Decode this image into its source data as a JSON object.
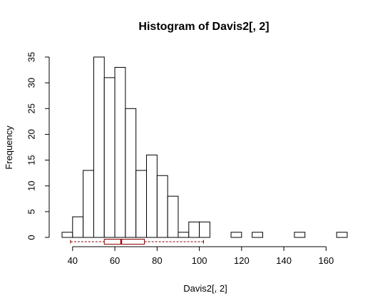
{
  "chart_data": {
    "type": "bar",
    "title": "Histogram of Davis2[, 2]",
    "xlabel": "Davis2[, 2]",
    "ylabel": "Frequency",
    "bin_width": 5,
    "bins": [
      {
        "from": 35,
        "to": 40,
        "count": 1
      },
      {
        "from": 40,
        "to": 45,
        "count": 4
      },
      {
        "from": 45,
        "to": 50,
        "count": 13
      },
      {
        "from": 50,
        "to": 55,
        "count": 35
      },
      {
        "from": 55,
        "to": 60,
        "count": 31
      },
      {
        "from": 60,
        "to": 65,
        "count": 33
      },
      {
        "from": 65,
        "to": 70,
        "count": 25
      },
      {
        "from": 70,
        "to": 75,
        "count": 13
      },
      {
        "from": 75,
        "to": 80,
        "count": 16
      },
      {
        "from": 80,
        "to": 85,
        "count": 12
      },
      {
        "from": 85,
        "to": 90,
        "count": 8
      },
      {
        "from": 90,
        "to": 95,
        "count": 1
      },
      {
        "from": 95,
        "to": 100,
        "count": 3
      },
      {
        "from": 100,
        "to": 105,
        "count": 3
      },
      {
        "from": 105,
        "to": 110,
        "count": 0
      },
      {
        "from": 110,
        "to": 115,
        "count": 0
      },
      {
        "from": 115,
        "to": 120,
        "count": 1
      },
      {
        "from": 120,
        "to": 125,
        "count": 0
      },
      {
        "from": 125,
        "to": 130,
        "count": 1
      },
      {
        "from": 130,
        "to": 135,
        "count": 0
      },
      {
        "from": 135,
        "to": 140,
        "count": 0
      },
      {
        "from": 140,
        "to": 145,
        "count": 0
      },
      {
        "from": 145,
        "to": 150,
        "count": 1
      },
      {
        "from": 150,
        "to": 155,
        "count": 0
      },
      {
        "from": 155,
        "to": 160,
        "count": 0
      },
      {
        "from": 160,
        "to": 165,
        "count": 0
      },
      {
        "from": 165,
        "to": 170,
        "count": 1
      }
    ],
    "xlim": [
      35,
      170
    ],
    "ylim": [
      0,
      35
    ],
    "x_ticks": [
      40,
      60,
      80,
      100,
      120,
      140,
      160
    ],
    "y_ticks": [
      0,
      5,
      10,
      15,
      20,
      25,
      30,
      35
    ],
    "grid": false,
    "boxplot": {
      "whisker_low": 39,
      "q1": 55,
      "median": 63,
      "q3": 74,
      "whisker_high": 102,
      "color": "#8b0000"
    },
    "bar_fill": "#ffffff",
    "bar_stroke": "#000000"
  }
}
